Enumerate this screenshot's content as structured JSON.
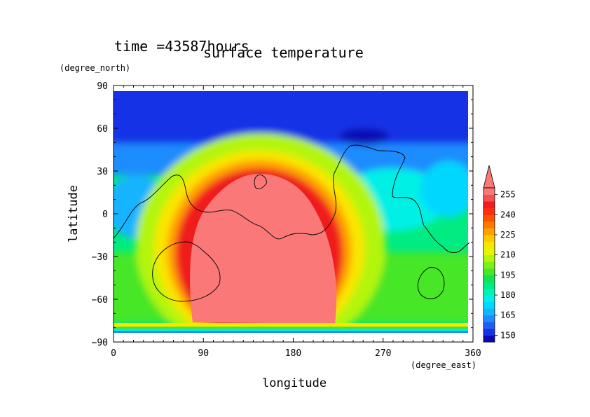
{
  "chart_data": {
    "type": "heatmap",
    "title": "surface temperature",
    "time_label": "time  =43587hours",
    "xlabel": "longitude",
    "ylabel": "latitude",
    "xunit": "(degree_east)",
    "yunit": "(degree_north)",
    "xlim": [
      0,
      360
    ],
    "ylim": [
      -90,
      90
    ],
    "xticks": [
      "0",
      "90",
      "180",
      "270",
      "360"
    ],
    "yticks": [
      "90",
      "60",
      "30",
      "0",
      "−30",
      "−60",
      "−90"
    ],
    "colorbar": {
      "levels": [
        145,
        150,
        155,
        160,
        165,
        170,
        175,
        180,
        185,
        190,
        195,
        200,
        205,
        210,
        215,
        220,
        225,
        230,
        235,
        240,
        245,
        250,
        255,
        260
      ],
      "tick_labels": [
        "150",
        "165",
        "180",
        "195",
        "210",
        "225",
        "240",
        "255"
      ],
      "colors": [
        "#0a0ab4",
        "#1432e6",
        "#1e5ff5",
        "#1e8cff",
        "#14b4ff",
        "#00d7ff",
        "#00f0e6",
        "#00f5b4",
        "#00eb82",
        "#14e150",
        "#46e628",
        "#7ff014",
        "#b4f50a",
        "#e6f500",
        "#fae600",
        "#ffc800",
        "#ffa000",
        "#ff7800",
        "#ff5000",
        "#ff2d14",
        "#f01e1e",
        "#f55050",
        "#fa7878"
      ]
    }
  }
}
